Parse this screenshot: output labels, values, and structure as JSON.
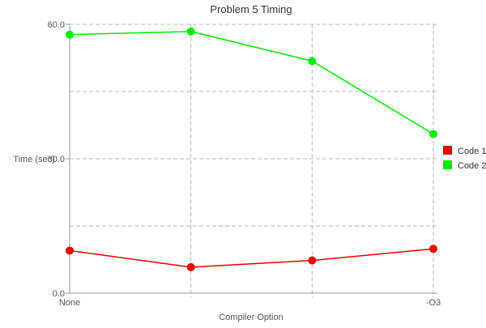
{
  "chart_data": {
    "type": "line",
    "title": "Problem 5 Timing",
    "xlabel": "Compiler Option",
    "ylabel": "Time (sec)",
    "categories": [
      "None",
      "",
      "",
      "-O3"
    ],
    "ylim": [
      0,
      60
    ],
    "yticks": [
      {
        "value": 0,
        "label": "0.0"
      },
      {
        "value": 30,
        "label": "30.0"
      },
      {
        "value": 60,
        "label": "60.0"
      }
    ],
    "minor_gridlines": [
      15,
      45
    ],
    "grid": true,
    "legend_position": "right",
    "series": [
      {
        "name": "Code 1",
        "color": "#ee0000",
        "values": [
          9.5,
          5.8,
          7.3,
          9.9
        ]
      },
      {
        "name": "Code 2",
        "color": "#00ee00",
        "values": [
          57.7,
          58.4,
          51.8,
          35.5
        ]
      }
    ]
  }
}
